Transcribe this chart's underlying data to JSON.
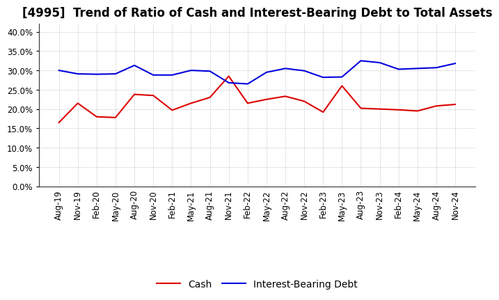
{
  "title": "[4995]  Trend of Ratio of Cash and Interest-Bearing Debt to Total Assets",
  "labels": [
    "Aug-19",
    "Nov-19",
    "Feb-20",
    "May-20",
    "Aug-20",
    "Nov-20",
    "Feb-21",
    "May-21",
    "Aug-21",
    "Nov-21",
    "Feb-22",
    "May-22",
    "Aug-22",
    "Nov-22",
    "Feb-23",
    "May-23",
    "Aug-23",
    "Nov-23",
    "Feb-24",
    "May-24",
    "Aug-24",
    "Nov-24"
  ],
  "cash": [
    0.165,
    0.215,
    0.18,
    0.178,
    0.238,
    0.235,
    0.197,
    0.215,
    0.23,
    0.285,
    0.215,
    0.225,
    0.233,
    0.22,
    0.192,
    0.26,
    0.202,
    0.2,
    0.198,
    0.195,
    0.208,
    0.212
  ],
  "ibd": [
    0.3,
    0.291,
    0.29,
    0.291,
    0.313,
    0.288,
    0.288,
    0.3,
    0.298,
    0.268,
    0.265,
    0.295,
    0.305,
    0.299,
    0.282,
    0.283,
    0.325,
    0.32,
    0.303,
    0.305,
    0.307,
    0.318
  ],
  "cash_color": "#dd0000",
  "ibd_color": "#0000dd",
  "legend_cash": "Cash",
  "legend_ibd": "Interest-Bearing Debt",
  "ylim": [
    0.0,
    0.42
  ],
  "yticks": [
    0.0,
    0.05,
    0.1,
    0.15,
    0.2,
    0.25,
    0.3,
    0.35,
    0.4
  ],
  "background_color": "#ffffff",
  "grid_color": "#999999",
  "title_fontsize": 12,
  "axis_fontsize": 8.5,
  "legend_fontsize": 10,
  "linewidth": 1.5
}
